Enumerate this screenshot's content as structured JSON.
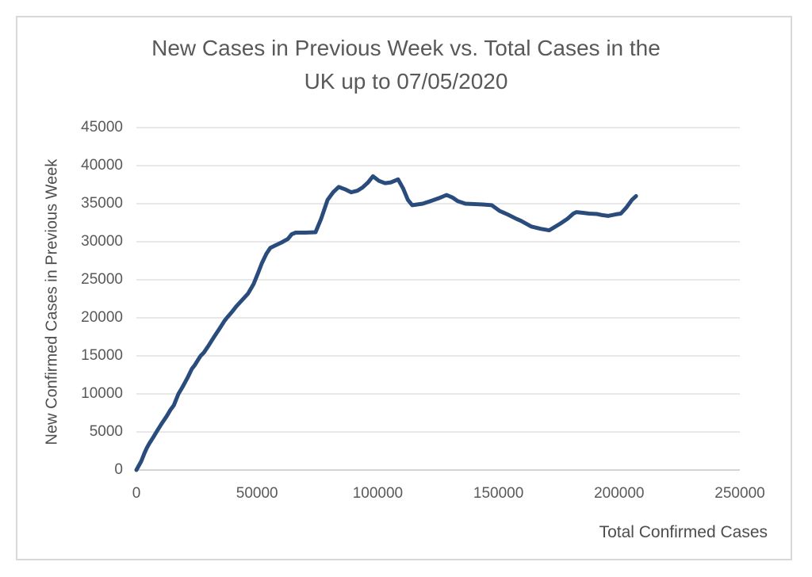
{
  "window": {
    "background": "#ffffff",
    "border_color": "#d8d8d8"
  },
  "chart_data": {
    "type": "line",
    "title": "New Cases in Previous Week vs. Total Cases in the UK up to 07/05/2020",
    "title_line1": "New Cases in Previous Week vs. Total Cases in the",
    "title_line2": "UK up to 07/05/2020",
    "xlabel": "Total Confirmed Cases",
    "ylabel": "New Confirmed Cases in Previous Week",
    "xlim": [
      0,
      250000
    ],
    "ylim": [
      0,
      45000
    ],
    "x_ticks": [
      0,
      50000,
      100000,
      150000,
      200000,
      250000
    ],
    "y_ticks": [
      0,
      5000,
      10000,
      15000,
      20000,
      25000,
      30000,
      35000,
      40000,
      45000
    ],
    "grid": "horizontal",
    "legend": "none",
    "line_color": "#2a4c7c",
    "line_width": 5,
    "grid_color": "#d9d9d9",
    "axis_line_color": "#c6c6c6",
    "text_color": "#595959",
    "series": [
      {
        "name": "New confirmed cases in previous week",
        "points": [
          [
            0,
            0
          ],
          [
            2000,
            1150
          ],
          [
            3400,
            2250
          ],
          [
            4400,
            2950
          ],
          [
            5400,
            3500
          ],
          [
            7000,
            4300
          ],
          [
            8300,
            5000
          ],
          [
            10000,
            5850
          ],
          [
            10900,
            6300
          ],
          [
            12600,
            7100
          ],
          [
            14200,
            7950
          ],
          [
            15500,
            8500
          ],
          [
            17400,
            10000
          ],
          [
            19100,
            10900
          ],
          [
            21400,
            12250
          ],
          [
            23000,
            13300
          ],
          [
            24100,
            13750
          ],
          [
            25700,
            14550
          ],
          [
            26600,
            15000
          ],
          [
            28000,
            15450
          ],
          [
            30000,
            16400
          ],
          [
            32200,
            17500
          ],
          [
            34500,
            18600
          ],
          [
            36500,
            19600
          ],
          [
            37500,
            20000
          ],
          [
            39400,
            20700
          ],
          [
            41400,
            21500
          ],
          [
            43700,
            22300
          ],
          [
            46300,
            23200
          ],
          [
            48500,
            24400
          ],
          [
            50300,
            25800
          ],
          [
            52000,
            27200
          ],
          [
            53800,
            28400
          ],
          [
            55500,
            29200
          ],
          [
            57500,
            29500
          ],
          [
            60100,
            29900
          ],
          [
            62700,
            30350
          ],
          [
            64400,
            31000
          ],
          [
            66000,
            31200
          ],
          [
            70000,
            31200
          ],
          [
            74200,
            31250
          ],
          [
            76500,
            33000
          ],
          [
            79200,
            35500
          ],
          [
            81500,
            36500
          ],
          [
            83800,
            37200
          ],
          [
            86400,
            36900
          ],
          [
            89000,
            36500
          ],
          [
            91500,
            36700
          ],
          [
            93600,
            37100
          ],
          [
            96000,
            37800
          ],
          [
            98000,
            38600
          ],
          [
            100500,
            38000
          ],
          [
            103000,
            37700
          ],
          [
            105500,
            37800
          ],
          [
            108400,
            38200
          ],
          [
            110500,
            37000
          ],
          [
            112500,
            35500
          ],
          [
            114300,
            34800
          ],
          [
            118600,
            35000
          ],
          [
            121500,
            35300
          ],
          [
            125100,
            35700
          ],
          [
            128500,
            36150
          ],
          [
            131000,
            35800
          ],
          [
            133000,
            35350
          ],
          [
            136300,
            35000
          ],
          [
            140000,
            34950
          ],
          [
            143500,
            34900
          ],
          [
            147200,
            34800
          ],
          [
            150500,
            34050
          ],
          [
            154000,
            33550
          ],
          [
            157500,
            33000
          ],
          [
            159300,
            32750
          ],
          [
            163600,
            32000
          ],
          [
            167500,
            31700
          ],
          [
            171000,
            31500
          ],
          [
            175700,
            32400
          ],
          [
            178500,
            33000
          ],
          [
            181000,
            33700
          ],
          [
            182300,
            33900
          ],
          [
            185000,
            33800
          ],
          [
            187600,
            33700
          ],
          [
            190800,
            33650
          ],
          [
            193000,
            33500
          ],
          [
            195400,
            33400
          ],
          [
            198700,
            33600
          ],
          [
            200700,
            33700
          ],
          [
            203000,
            34500
          ],
          [
            205300,
            35500
          ],
          [
            207000,
            36000
          ]
        ]
      }
    ]
  }
}
